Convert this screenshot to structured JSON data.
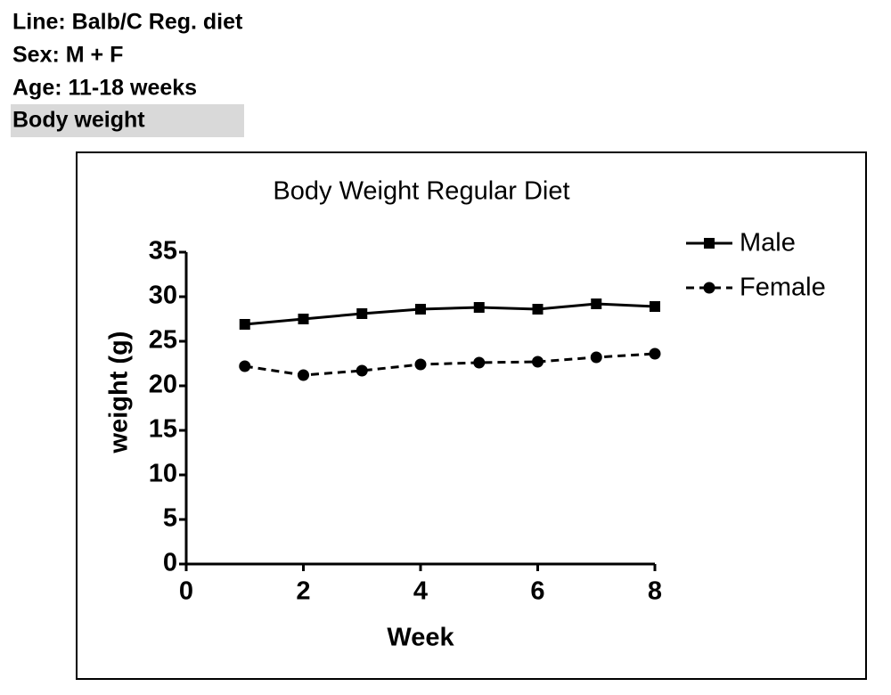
{
  "header": {
    "lines": [
      "Line: Balb/C  Reg. diet",
      "Sex: M + F",
      "Age: 11-18 weeks",
      "Body weight"
    ]
  },
  "chart_data": {
    "type": "line",
    "title": "Body Weight Regular Diet",
    "x_label": "Week",
    "y_label": "weight (g)",
    "x": [
      1,
      2,
      3,
      4,
      5,
      6,
      7,
      8
    ],
    "series": [
      {
        "name": "Male",
        "color": "#000000",
        "line_style": "solid",
        "marker": "square",
        "values": [
          26.9,
          27.5,
          28.1,
          28.6,
          28.8,
          28.6,
          29.2,
          28.9
        ]
      },
      {
        "name": "Female",
        "color": "#000000",
        "line_style": "dashed",
        "marker": "circle",
        "values": [
          22.2,
          21.2,
          21.7,
          22.4,
          22.6,
          22.7,
          23.2,
          23.6
        ]
      }
    ],
    "xlim": [
      0,
      8
    ],
    "xticks": [
      0,
      2,
      4,
      6,
      8
    ],
    "ylim": [
      0,
      35
    ],
    "yticks": [
      0,
      5,
      10,
      15,
      20,
      25,
      30,
      35
    ],
    "grid": false,
    "legend": "right"
  }
}
